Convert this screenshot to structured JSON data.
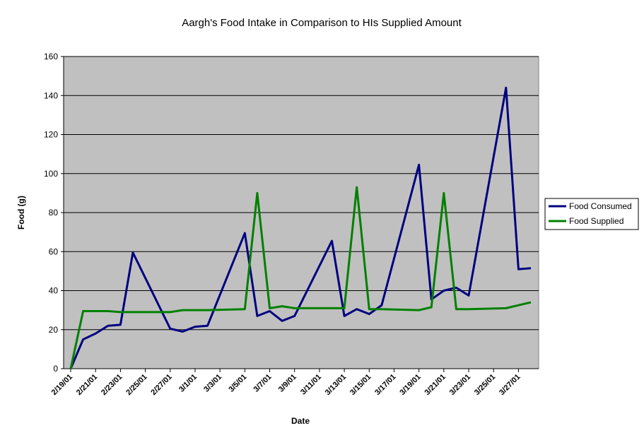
{
  "chart_data": {
    "type": "line",
    "title": "Aargh's Food Intake in Comparison to HIs Supplied Amount",
    "x_label": "Date",
    "y_label": "Food (g)",
    "x": [
      "2/19/01",
      "2/20/01",
      "2/21/01",
      "2/22/01",
      "2/23/01",
      "2/24/01",
      "2/27/01",
      "2/28/01",
      "3/1/01",
      "3/2/01",
      "3/5/01",
      "3/6/01",
      "3/7/01",
      "3/8/01",
      "3/9/01",
      "3/12/01",
      "3/13/01",
      "3/14/01",
      "3/15/01",
      "3/16/01",
      "3/19/01",
      "3/20/01",
      "3/21/01",
      "3/22/01",
      "3/23/01",
      "3/26/01",
      "3/27/01",
      "3/28/01"
    ],
    "series": [
      {
        "name": "Food Consumed",
        "color": "#000080",
        "values": [
          0,
          15,
          18,
          22,
          22.5,
          59.5,
          20.5,
          19,
          21.5,
          22,
          69.5,
          27,
          29.5,
          24.5,
          27,
          65.5,
          27,
          30.5,
          28,
          32.5,
          104.5,
          35.5,
          40,
          41.5,
          37.5,
          144,
          51,
          51.5
        ]
      },
      {
        "name": "Food Supplied",
        "color": "#008000",
        "values": [
          0,
          29.5,
          29.5,
          29.5,
          29,
          29,
          29,
          30,
          30,
          30,
          30.5,
          90,
          31,
          32,
          31,
          31,
          31,
          93,
          30.5,
          30.5,
          30,
          31.5,
          90,
          30.5,
          30.5,
          31,
          32.5,
          34
        ]
      }
    ],
    "xlim": [
      "2/19/01",
      "3/28/01"
    ],
    "xticks": [
      "2/19/01",
      "2/21/01",
      "2/23/01",
      "2/25/01",
      "2/27/01",
      "3/1/01",
      "3/3/01",
      "3/5/01",
      "3/7/01",
      "3/9/01",
      "3/11/01",
      "3/13/01",
      "3/15/01",
      "3/17/01",
      "3/19/01",
      "3/21/01",
      "3/23/01",
      "3/25/01",
      "3/27/01"
    ],
    "ylim": [
      0,
      160
    ],
    "yticks": [
      0,
      20,
      40,
      60,
      80,
      100,
      120,
      140,
      160
    ],
    "grid": true,
    "legend": "right",
    "plot_background": "#c0c0c0"
  }
}
